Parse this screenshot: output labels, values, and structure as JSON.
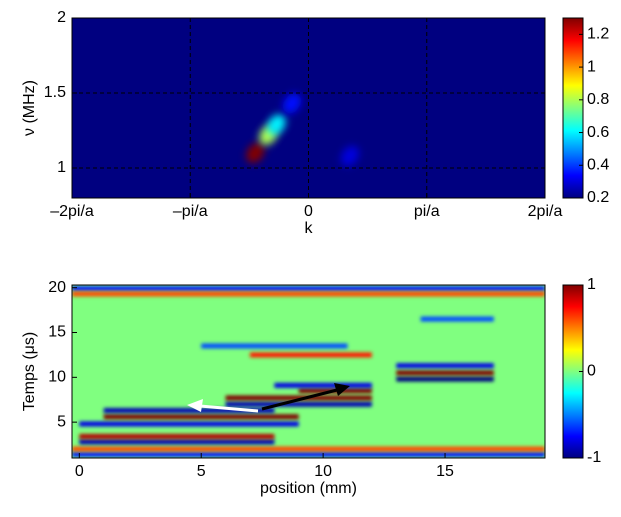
{
  "chart_data": [
    {
      "type": "heatmap",
      "xlabel": "k",
      "ylabel": "ν (MHz)",
      "xlim": [
        -2,
        2
      ],
      "ylim": [
        0.8,
        2
      ],
      "xticks": [
        {
          "value": -2,
          "label": "–2pi/a"
        },
        {
          "value": -1,
          "label": "–pi/a"
        },
        0,
        {
          "value": 1,
          "label": "pi/a"
        },
        {
          "value": 2,
          "label": "2pi/a"
        }
      ],
      "yticks": [
        1,
        1.5,
        2
      ],
      "grid": true,
      "background": 0.2,
      "clim": [
        0.2,
        1.3
      ],
      "cticks": [
        0.2,
        0.4,
        0.6,
        0.8,
        1,
        1.2
      ],
      "spots": [
        {
          "x": -0.45,
          "y": 1.1,
          "value": 1.3
        },
        {
          "x": -0.34,
          "y": 1.22,
          "value": 0.8
        },
        {
          "x": -0.27,
          "y": 1.29,
          "value": 0.6
        },
        {
          "x": -0.14,
          "y": 1.43,
          "value": 0.35
        },
        {
          "x": 0.35,
          "y": 1.08,
          "value": 0.3
        }
      ]
    },
    {
      "type": "stripes",
      "xlabel": "position (mm)",
      "ylabel": "Temps (μs)",
      "xlim": [
        -0.3,
        19.1
      ],
      "ylim": [
        1,
        20.3
      ],
      "xticks": [
        0,
        5,
        10,
        15
      ],
      "yticks": [
        5,
        10,
        15,
        20
      ],
      "grid": false,
      "background": 0,
      "clim": [
        -1,
        1
      ],
      "cticks": [
        -1,
        0,
        1
      ],
      "stripes": [
        {
          "x": [
            -0.3,
            19.1
          ],
          "y": 19.9,
          "value": -0.7
        },
        {
          "x": [
            -0.3,
            19.1
          ],
          "y": 19.3,
          "value": 0.6
        },
        {
          "x": [
            -0.3,
            19.1
          ],
          "y": 1.4,
          "value": -0.7
        },
        {
          "x": [
            -0.3,
            19.1
          ],
          "y": 2,
          "value": 0.6
        },
        {
          "x": [
            0,
            8
          ],
          "y": 2.8,
          "value": -0.9
        },
        {
          "x": [
            0,
            8
          ],
          "y": 3.4,
          "value": 0.9
        },
        {
          "x": [
            0,
            9
          ],
          "y": 4.8,
          "value": -0.8
        },
        {
          "x": [
            1,
            9
          ],
          "y": 5.6,
          "value": 1
        },
        {
          "x": [
            1,
            8
          ],
          "y": 6.3,
          "value": -0.9
        },
        {
          "x": [
            6,
            12
          ],
          "y": 7,
          "value": -0.9
        },
        {
          "x": [
            6,
            12
          ],
          "y": 7.7,
          "value": 1
        },
        {
          "x": [
            9,
            12
          ],
          "y": 8.5,
          "value": 1
        },
        {
          "x": [
            8,
            12
          ],
          "y": 9.1,
          "value": -0.8
        },
        {
          "x": [
            13,
            17
          ],
          "y": 9.8,
          "value": -1
        },
        {
          "x": [
            13,
            17
          ],
          "y": 10.5,
          "value": 1
        },
        {
          "x": [
            13,
            17
          ],
          "y": 11.3,
          "value": -0.8
        },
        {
          "x": [
            7,
            12
          ],
          "y": 12.5,
          "value": 0.7
        },
        {
          "x": [
            5,
            11
          ],
          "y": 13.5,
          "value": -0.6
        },
        {
          "x": [
            14,
            17
          ],
          "y": 16.5,
          "value": -0.6
        }
      ]
    }
  ]
}
